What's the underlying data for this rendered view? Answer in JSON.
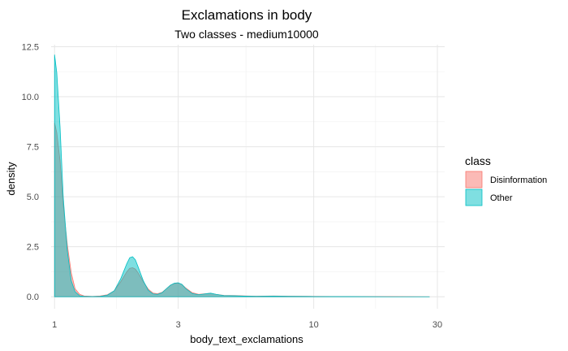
{
  "chart_data": {
    "type": "area",
    "title": "Exclamations in body",
    "subtitle": "Two classes - medium10000",
    "xlabel": "body_text_exclamations",
    "ylabel": "density",
    "x_scale": "log",
    "xlim": [
      0.97,
      32
    ],
    "ylim": [
      -0.6,
      12.6
    ],
    "x_ticks": [
      1,
      3,
      10,
      30
    ],
    "y_ticks": [
      0.0,
      2.5,
      5.0,
      7.5,
      10.0,
      12.5
    ],
    "y_tick_labels": [
      "0.0",
      "2.5",
      "5.0",
      "7.5",
      "10.0",
      "12.5"
    ],
    "grid": true,
    "legend": {
      "title": "class",
      "position": "right"
    },
    "series": [
      {
        "name": "Disinformation",
        "color": "#F8766D",
        "x": [
          1,
          1.02,
          1.05,
          1.08,
          1.12,
          1.16,
          1.2,
          1.25,
          1.3,
          1.4,
          1.5,
          1.6,
          1.7,
          1.8,
          1.9,
          1.95,
          2,
          2.05,
          2.1,
          2.2,
          2.3,
          2.4,
          2.5,
          2.6,
          2.7,
          2.8,
          2.9,
          3,
          3.1,
          3.2,
          3.4,
          3.6,
          3.8,
          4,
          4.2,
          4.5,
          5,
          5.5,
          6,
          7,
          8,
          10,
          14,
          20,
          28
        ],
        "y": [
          8.7,
          8.2,
          6.8,
          4.6,
          2.6,
          1.2,
          0.4,
          0.12,
          0.04,
          0.02,
          0.04,
          0.1,
          0.3,
          0.75,
          1.25,
          1.42,
          1.45,
          1.38,
          1.2,
          0.75,
          0.38,
          0.18,
          0.15,
          0.22,
          0.4,
          0.58,
          0.66,
          0.68,
          0.62,
          0.45,
          0.2,
          0.12,
          0.15,
          0.17,
          0.12,
          0.07,
          0.06,
          0.04,
          0.03,
          0.04,
          0.03,
          0.02,
          0.01,
          0.01,
          0.0
        ]
      },
      {
        "name": "Other",
        "color": "#00BFC4",
        "x": [
          1,
          1.02,
          1.05,
          1.08,
          1.12,
          1.16,
          1.2,
          1.25,
          1.3,
          1.4,
          1.5,
          1.6,
          1.7,
          1.8,
          1.9,
          1.95,
          2,
          2.05,
          2.1,
          2.2,
          2.3,
          2.4,
          2.5,
          2.6,
          2.7,
          2.8,
          2.9,
          3,
          3.1,
          3.2,
          3.4,
          3.6,
          3.8,
          4,
          4.2,
          4.5,
          5,
          5.5,
          6,
          7,
          8,
          10,
          14,
          20,
          28
        ],
        "y": [
          12.1,
          11.2,
          8.5,
          5.0,
          2.3,
          0.8,
          0.25,
          0.05,
          0.02,
          0.01,
          0.02,
          0.08,
          0.3,
          0.9,
          1.65,
          1.95,
          2.0,
          1.85,
          1.5,
          0.8,
          0.32,
          0.14,
          0.12,
          0.2,
          0.4,
          0.58,
          0.68,
          0.7,
          0.62,
          0.42,
          0.16,
          0.1,
          0.14,
          0.18,
          0.12,
          0.06,
          0.05,
          0.03,
          0.02,
          0.03,
          0.02,
          0.01,
          0.01,
          0.0,
          0.0
        ]
      }
    ]
  }
}
